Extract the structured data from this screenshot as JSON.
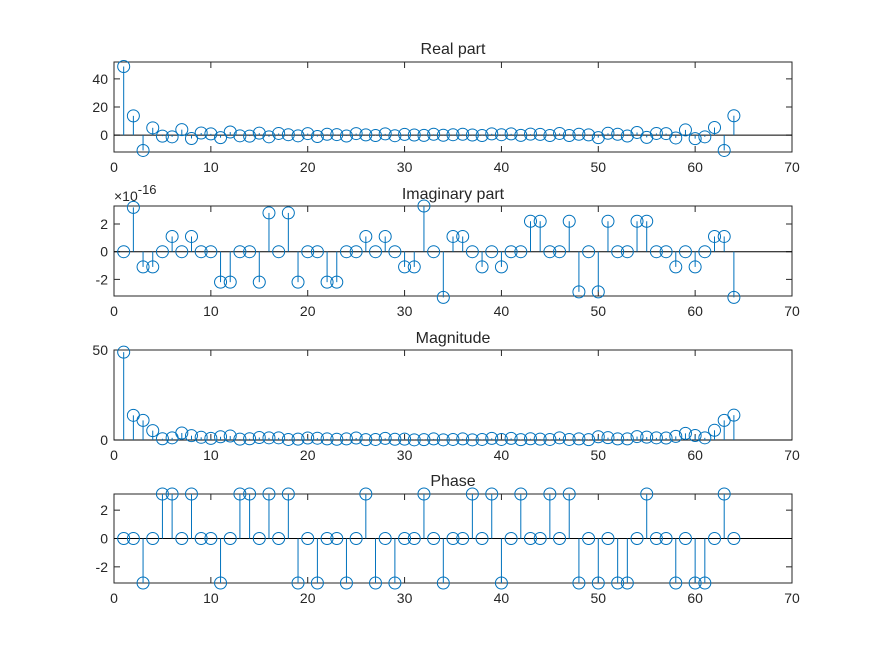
{
  "style": {
    "series_color": "#0072BD",
    "axes_color": "#262626",
    "background": "#FFFFFF"
  },
  "chart_data": [
    {
      "type": "stem",
      "title": "Real part",
      "xlim": [
        0,
        70
      ],
      "ylim": [
        -12,
        52
      ],
      "x_ticks": [
        0,
        10,
        20,
        30,
        40,
        50,
        60,
        70
      ],
      "y_ticks": [
        0,
        20,
        40
      ],
      "y_exponent_label": "",
      "grid": false,
      "x": [
        1,
        2,
        3,
        4,
        5,
        6,
        7,
        8,
        9,
        10,
        11,
        12,
        13,
        14,
        15,
        16,
        17,
        18,
        19,
        20,
        21,
        22,
        23,
        24,
        25,
        26,
        27,
        28,
        29,
        30,
        31,
        32,
        33,
        34,
        35,
        36,
        37,
        38,
        39,
        40,
        41,
        42,
        43,
        44,
        45,
        46,
        47,
        48,
        49,
        50,
        51,
        52,
        53,
        54,
        55,
        56,
        57,
        58,
        59,
        60,
        61,
        62,
        63,
        64
      ],
      "y": [
        48.8,
        13.7,
        -10.9,
        5.2,
        -0.7,
        -1.2,
        3.9,
        -2.4,
        1.5,
        0.9,
        -1.8,
        2.2,
        -0.5,
        -0.7,
        1.4,
        -1.2,
        1.2,
        0.3,
        -0.5,
        1.1,
        -1.0,
        0.6,
        0.4,
        -0.6,
        1.1,
        0.2,
        -0.3,
        0.9,
        -0.4,
        0.5,
        0.1,
        -0.2,
        0.6,
        -0.1,
        0.3,
        0.6,
        0.1,
        -0.3,
        0.9,
        0.3,
        0.9,
        -0.2,
        0.7,
        0.5,
        -0.3,
        1.2,
        -0.3,
        0.6,
        0.2,
        -1.8,
        1.3,
        0.6,
        -0.6,
        1.9,
        -1.6,
        1.2,
        1.1,
        -2.0,
        3.7,
        -2.5,
        -1.2,
        5.4,
        -10.9,
        13.8
      ]
    },
    {
      "type": "stem",
      "title": "Imaginary part",
      "xlim": [
        0,
        70
      ],
      "ylim": [
        -3.2,
        3.3
      ],
      "x_ticks": [
        0,
        10,
        20,
        30,
        40,
        50,
        60,
        70
      ],
      "y_ticks": [
        -2,
        0,
        2
      ],
      "y_exponent_label": "×10^-16",
      "y_exp_base": "×10",
      "y_exp_power": "-16",
      "grid": false,
      "x": [
        1,
        2,
        3,
        4,
        5,
        6,
        7,
        8,
        9,
        10,
        11,
        12,
        13,
        14,
        15,
        16,
        17,
        18,
        19,
        20,
        21,
        22,
        23,
        24,
        25,
        26,
        27,
        28,
        29,
        30,
        31,
        32,
        33,
        34,
        35,
        36,
        37,
        38,
        39,
        40,
        41,
        42,
        43,
        44,
        45,
        46,
        47,
        48,
        49,
        50,
        51,
        52,
        53,
        54,
        55,
        56,
        57,
        58,
        59,
        60,
        61,
        62,
        63,
        64
      ],
      "y": [
        0,
        3.2,
        -1.1,
        -1.1,
        0,
        1.1,
        0,
        1.1,
        0,
        0,
        -2.2,
        -2.2,
        0,
        0,
        -2.2,
        2.8,
        0,
        2.8,
        -2.2,
        0,
        0,
        -2.2,
        -2.2,
        0,
        0,
        1.1,
        0,
        1.1,
        0,
        -1.1,
        -1.1,
        3.3,
        0,
        -3.3,
        1.1,
        1.1,
        0,
        -1.1,
        0,
        -1.1,
        0,
        0,
        2.2,
        2.2,
        0,
        0,
        2.2,
        -2.9,
        0,
        -2.9,
        2.2,
        0,
        0,
        2.2,
        2.2,
        0,
        0,
        -1.1,
        0,
        -1.1,
        0,
        1.1,
        1.1,
        -3.3
      ]
    },
    {
      "type": "stem",
      "title": "Magnitude",
      "xlim": [
        0,
        70
      ],
      "ylim": [
        0,
        50
      ],
      "x_ticks": [
        0,
        10,
        20,
        30,
        40,
        50,
        60,
        70
      ],
      "y_ticks": [
        0,
        50
      ],
      "y_exponent_label": "",
      "grid": false,
      "x": [
        1,
        2,
        3,
        4,
        5,
        6,
        7,
        8,
        9,
        10,
        11,
        12,
        13,
        14,
        15,
        16,
        17,
        18,
        19,
        20,
        21,
        22,
        23,
        24,
        25,
        26,
        27,
        28,
        29,
        30,
        31,
        32,
        33,
        34,
        35,
        36,
        37,
        38,
        39,
        40,
        41,
        42,
        43,
        44,
        45,
        46,
        47,
        48,
        49,
        50,
        51,
        52,
        53,
        54,
        55,
        56,
        57,
        58,
        59,
        60,
        61,
        62,
        63,
        64
      ],
      "y": [
        48.8,
        13.7,
        10.9,
        5.2,
        0.7,
        1.2,
        3.9,
        2.4,
        1.5,
        0.9,
        1.8,
        2.2,
        0.5,
        0.7,
        1.4,
        1.2,
        1.2,
        0.3,
        0.5,
        1.1,
        1.0,
        0.6,
        0.4,
        0.6,
        1.1,
        0.2,
        0.3,
        0.9,
        0.4,
        0.5,
        0.1,
        0.2,
        0.6,
        0.1,
        0.3,
        0.6,
        0.1,
        0.3,
        0.9,
        0.3,
        0.9,
        0.2,
        0.7,
        0.5,
        0.3,
        1.2,
        0.3,
        0.6,
        0.2,
        1.8,
        1.3,
        0.6,
        0.6,
        1.9,
        1.6,
        1.2,
        1.1,
        2.0,
        3.7,
        2.5,
        1.2,
        5.4,
        10.9,
        13.8
      ]
    },
    {
      "type": "stem",
      "title": "Phase",
      "xlim": [
        0,
        70
      ],
      "ylim": [
        -3.14,
        3.14
      ],
      "x_ticks": [
        0,
        10,
        20,
        30,
        40,
        50,
        60,
        70
      ],
      "y_ticks": [
        -2,
        0,
        2
      ],
      "y_exponent_label": "",
      "grid": false,
      "x": [
        1,
        2,
        3,
        4,
        5,
        6,
        7,
        8,
        9,
        10,
        11,
        12,
        13,
        14,
        15,
        16,
        17,
        18,
        19,
        20,
        21,
        22,
        23,
        24,
        25,
        26,
        27,
        28,
        29,
        30,
        31,
        32,
        33,
        34,
        35,
        36,
        37,
        38,
        39,
        40,
        41,
        42,
        43,
        44,
        45,
        46,
        47,
        48,
        49,
        50,
        51,
        52,
        53,
        54,
        55,
        56,
        57,
        58,
        59,
        60,
        61,
        62,
        63,
        64
      ],
      "y": [
        0,
        0,
        -3.14,
        0,
        3.14,
        3.14,
        0,
        3.14,
        0,
        0,
        -3.14,
        0,
        3.14,
        3.14,
        0,
        3.14,
        0,
        3.14,
        -3.14,
        0,
        -3.14,
        0,
        0,
        -3.14,
        0,
        3.14,
        -3.14,
        0,
        -3.14,
        0,
        0,
        3.14,
        0,
        -3.14,
        0,
        0,
        3.14,
        0,
        3.14,
        -3.14,
        0,
        3.14,
        0,
        0,
        3.14,
        0,
        3.14,
        -3.14,
        0,
        -3.14,
        0,
        -3.14,
        -3.14,
        0,
        3.14,
        0,
        0,
        -3.14,
        0,
        -3.14,
        -3.14,
        0,
        3.14,
        0
      ]
    }
  ]
}
